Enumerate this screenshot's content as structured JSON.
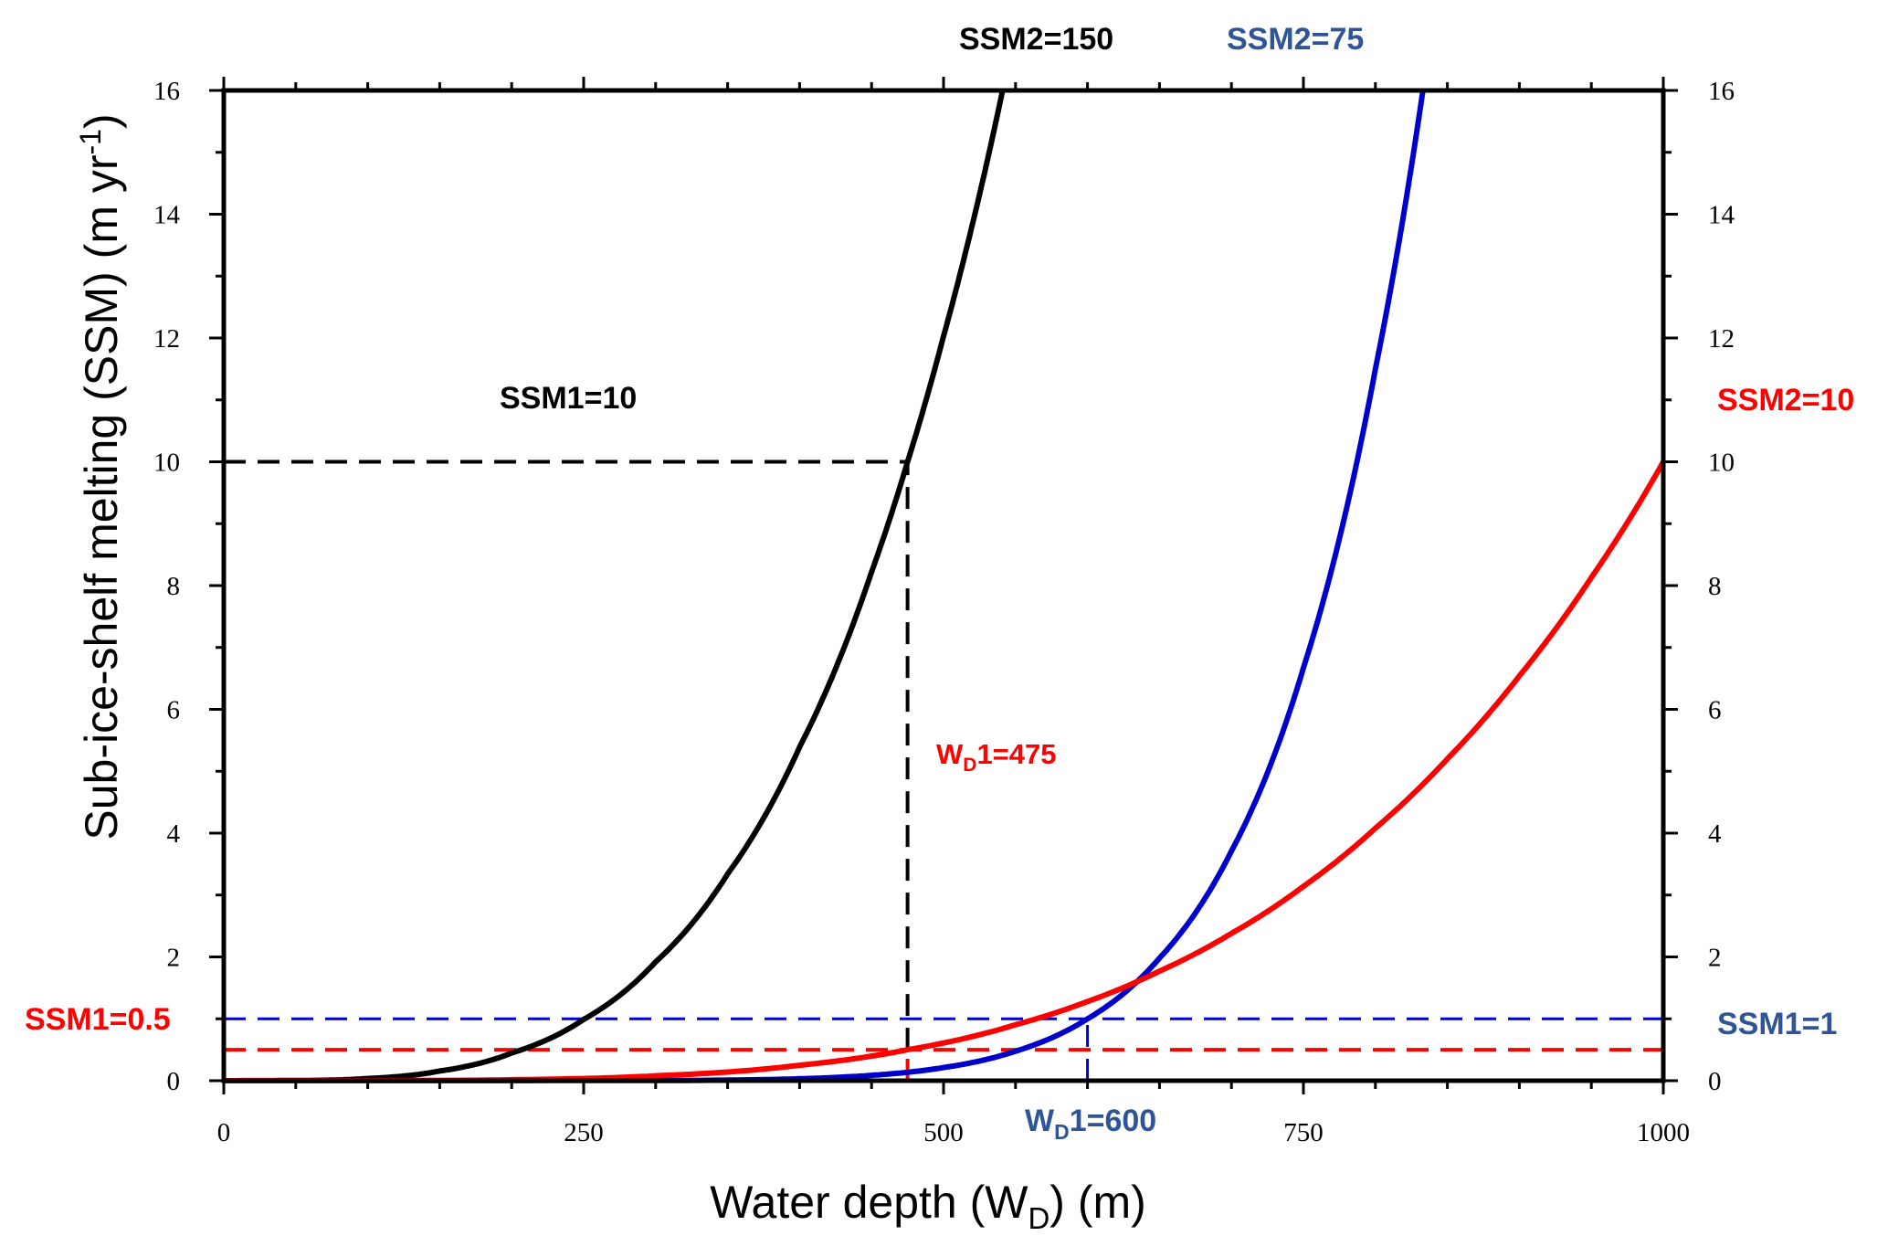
{
  "chart_data": {
    "type": "line",
    "title": "",
    "xlabel": {
      "text": "Water depth (W",
      "sub": "D",
      "tail": ") (m)"
    },
    "ylabel": {
      "text": "Sub-ice-shelf melting (SSM) (m yr",
      "sup": "-1",
      "tail": ")"
    },
    "xlim": [
      0,
      1000
    ],
    "ylim": [
      0,
      16
    ],
    "x_ticks": [
      0,
      250,
      500,
      750,
      1000
    ],
    "x_tick_labels": [
      "0",
      "250",
      "500",
      "750",
      "1000"
    ],
    "x_minor_step": 50,
    "y_ticks": [
      0,
      2,
      4,
      6,
      8,
      10,
      12,
      14,
      16
    ],
    "y_tick_labels": [
      "0",
      "2",
      "4",
      "6",
      "8",
      "10",
      "12",
      "14",
      "16"
    ],
    "y_minor_step": 1,
    "right_axis_labels": true,
    "grid": false,
    "legend": "none",
    "series": [
      {
        "name": "SSM1=10, SSM2=150, WD1=475",
        "color": "#000000",
        "x": [
          0,
          50,
          100,
          150,
          200,
          250,
          300,
          350,
          400,
          450,
          475,
          500,
          520,
          541
        ],
        "y": [
          0.0,
          0.003,
          0.036,
          0.157,
          0.448,
          0.99,
          1.92,
          3.34,
          5.39,
          8.22,
          10.0,
          12.03,
          13.83,
          16.0
        ]
      },
      {
        "name": "SSM1=1, SSM2=75, WD1=600",
        "color": "#0000cc",
        "x": [
          0,
          300,
          350,
          400,
          450,
          500,
          550,
          600,
          650,
          700,
          750,
          800,
          833
        ],
        "y": [
          0.0,
          0.003,
          0.01,
          0.032,
          0.087,
          0.212,
          0.477,
          1.0,
          1.98,
          3.71,
          6.67,
          11.5,
          16.0
        ]
      },
      {
        "name": "SSM1=0.5, SSM2=10, WD1=475",
        "color": "#ff0000",
        "x": [
          0,
          100,
          200,
          300,
          400,
          475,
          550,
          600,
          650,
          700,
          750,
          800,
          850,
          900,
          950,
          1000
        ],
        "y": [
          0.0,
          0.001,
          0.016,
          0.079,
          0.25,
          0.5,
          0.904,
          1.28,
          1.77,
          2.38,
          3.14,
          4.08,
          5.2,
          6.54,
          8.13,
          10.0
        ]
      }
    ],
    "reference_lines": [
      {
        "name": "ssm10-h",
        "color": "#000000",
        "orientation": "h",
        "value": 10,
        "from": 0,
        "to": 475
      },
      {
        "name": "wd475-v",
        "color": "#000000",
        "orientation": "v",
        "value": 475,
        "from": 0.5,
        "to": 10
      },
      {
        "name": "wd475-v-low",
        "color": "#ff0000",
        "orientation": "v",
        "value": 475,
        "from": 0,
        "to": 0.5
      },
      {
        "name": "ssm1-h",
        "color": "#0000cc",
        "orientation": "h",
        "value": 1,
        "from": 0,
        "to": 1000
      },
      {
        "name": "ssm05-h",
        "color": "#ff0000",
        "orientation": "h",
        "value": 0.5,
        "from": 0,
        "to": 1000
      },
      {
        "name": "wd600-v",
        "color": "#0000cc",
        "orientation": "v",
        "value": 600,
        "from": 0,
        "to": 1
      }
    ],
    "annotations": [
      {
        "name": "ssm2-150-label",
        "text": "SSM2=150",
        "color": "#000000"
      },
      {
        "name": "ssm2-75-label",
        "text": "SSM2=75",
        "color": "#2f5597"
      },
      {
        "name": "ssm1-10-label",
        "text": "SSM1=10",
        "color": "#000000"
      },
      {
        "name": "ssm2-10-label",
        "text": "SSM2=10",
        "color": "#ff0000"
      },
      {
        "name": "wd1-475-label",
        "text": "W",
        "sub": "D",
        "tail": "1=475",
        "color": "#ff0000"
      },
      {
        "name": "ssm1-05-label",
        "text": "SSM1=0.5",
        "color": "#ff0000"
      },
      {
        "name": "ssm1-1-label",
        "text": "SSM1=1",
        "color": "#2f5597"
      },
      {
        "name": "wd1-600-label",
        "text": "W",
        "sub": "D",
        "tail": "1=600",
        "color": "#2f5597"
      }
    ]
  }
}
